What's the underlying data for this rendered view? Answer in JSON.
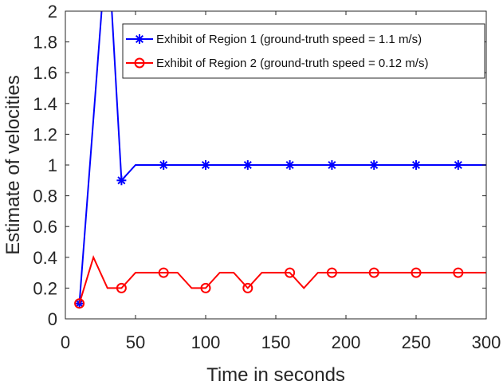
{
  "chart_data": {
    "type": "line",
    "xlabel": "Time in seconds",
    "ylabel": "Estimate of velocities",
    "xlim": [
      0,
      300
    ],
    "ylim": [
      0,
      2
    ],
    "xticks": [
      0,
      50,
      100,
      150,
      200,
      250,
      300
    ],
    "yticks": [
      0,
      0.2,
      0.4,
      0.6,
      0.8,
      1,
      1.2,
      1.4,
      1.6,
      1.8,
      2
    ],
    "grid": false,
    "legend_position": "top-right",
    "series": [
      {
        "name": "Exhibit of Region 1 (ground-truth speed = 1.1 m/s)",
        "color": "#0000ff",
        "marker": "asterisk",
        "x": [
          10,
          20,
          30,
          40,
          50,
          60,
          70,
          80,
          90,
          100,
          110,
          120,
          130,
          140,
          150,
          160,
          170,
          180,
          190,
          200,
          210,
          220,
          230,
          240,
          250,
          260,
          270,
          280,
          290,
          300
        ],
        "y": [
          0.1,
          1.3,
          2.5,
          0.9,
          1,
          1,
          1,
          1,
          1,
          1,
          1,
          1,
          1,
          1,
          1,
          1,
          1,
          1,
          1,
          1,
          1,
          1,
          1,
          1,
          1,
          1,
          1,
          1,
          1,
          1
        ],
        "marker_x": [
          10,
          40,
          70,
          100,
          130,
          160,
          190,
          220,
          250,
          280
        ]
      },
      {
        "name": "Exhibit of Region 2 (ground-truth speed = 0.12 m/s)",
        "color": "#ff0000",
        "marker": "circle",
        "x": [
          10,
          20,
          30,
          40,
          50,
          60,
          70,
          80,
          90,
          100,
          110,
          120,
          130,
          140,
          150,
          160,
          170,
          180,
          190,
          200,
          210,
          220,
          230,
          240,
          250,
          260,
          270,
          280,
          290,
          300
        ],
        "y": [
          0.1,
          0.4,
          0.2,
          0.2,
          0.3,
          0.3,
          0.3,
          0.3,
          0.2,
          0.2,
          0.3,
          0.3,
          0.2,
          0.3,
          0.3,
          0.3,
          0.2,
          0.3,
          0.3,
          0.3,
          0.3,
          0.3,
          0.3,
          0.3,
          0.3,
          0.3,
          0.3,
          0.3,
          0.3,
          0.3
        ],
        "marker_x": [
          10,
          40,
          70,
          100,
          130,
          160,
          190,
          220,
          250,
          280
        ]
      }
    ]
  }
}
